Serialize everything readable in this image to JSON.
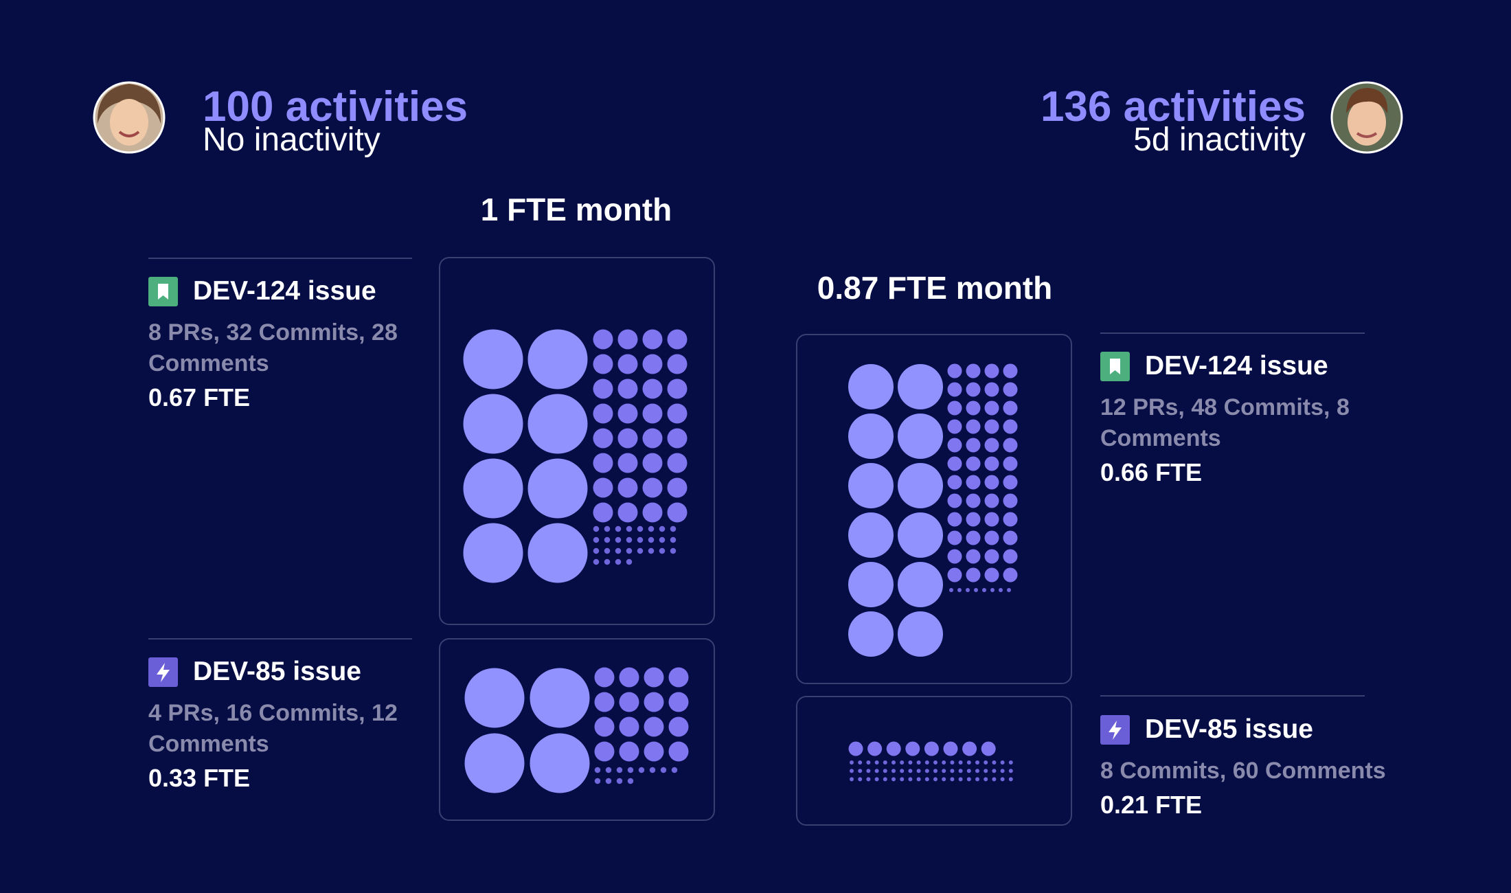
{
  "people": [
    {
      "activities": "100 activities",
      "inactivity": "No inactivity",
      "fte_month": "1 FTE month",
      "issues": [
        {
          "title": "DEV-124 issue",
          "icon": "bookmark",
          "stats": [
            {
              "value": 8,
              "label": "8 PRs,",
              "dot": "large"
            },
            {
              "value": 32,
              "label": "32 Commits,",
              "dot": "medium"
            },
            {
              "value": 28,
              "label": "28 Comments",
              "dot": "small"
            }
          ],
          "fte": "0.67 FTE"
        },
        {
          "title": "DEV-85 issue",
          "icon": "bolt",
          "stats": [
            {
              "value": 4,
              "label": "4 PRs,",
              "dot": "large"
            },
            {
              "value": 16,
              "label": "16 Commits,",
              "dot": "medium"
            },
            {
              "value": 12,
              "label": "12 Comments",
              "dot": "small"
            }
          ],
          "fte": "0.33 FTE"
        }
      ]
    },
    {
      "activities": "136 activities",
      "inactivity": "5d inactivity",
      "fte_month": "0.87 FTE month",
      "issues": [
        {
          "title": "DEV-124 issue",
          "icon": "bookmark",
          "stats": [
            {
              "value": 12,
              "label": "12 PRs,",
              "dot": "large"
            },
            {
              "value": 48,
              "label": "48 Commits,",
              "dot": "medium"
            },
            {
              "value": 8,
              "label": "8 Comments",
              "dot": "small"
            }
          ],
          "fte": "0.66 FTE"
        },
        {
          "title": "DEV-85 issue",
          "icon": "bolt",
          "stats": [
            {
              "value": 8,
              "label": "8 Commits,",
              "dot": "medium"
            },
            {
              "value": 60,
              "label": "60 Comments",
              "dot": "small"
            }
          ],
          "fte": "0.21 FTE"
        }
      ]
    }
  ]
}
